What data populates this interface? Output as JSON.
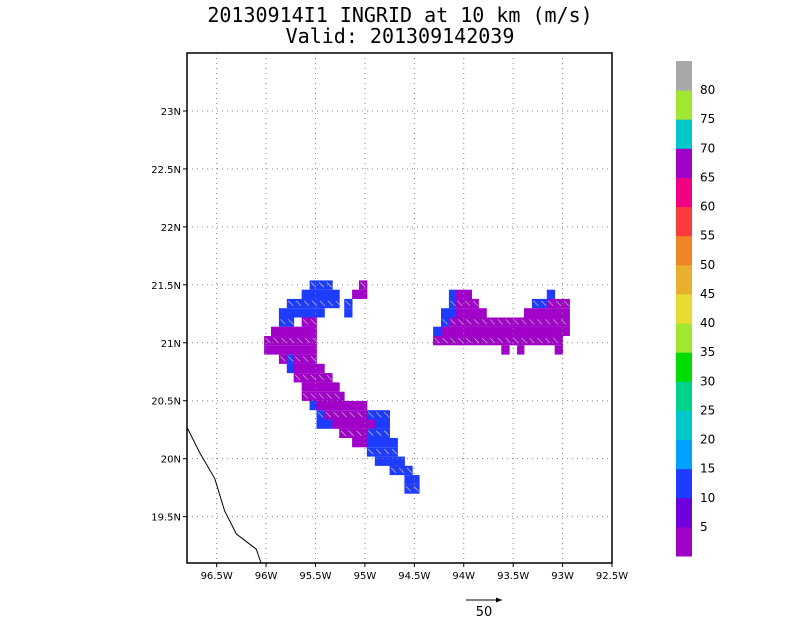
{
  "title": {
    "line1": "20130914I1 INGRID at 10 km (m/s)",
    "line2": "Valid: 201309142039"
  },
  "chart_data": {
    "type": "heatmap",
    "title": "20130914I1 INGRID at 10 km (m/s)",
    "subtitle": "Valid: 201309142039",
    "xlim": [
      -96.8,
      -92.5
    ],
    "ylim": [
      19.1,
      23.5
    ],
    "grid": true,
    "x_ticks": [
      {
        "v": -96.5,
        "label": "96.5W"
      },
      {
        "v": -96.0,
        "label": "96W"
      },
      {
        "v": -95.5,
        "label": "95.5W"
      },
      {
        "v": -95.0,
        "label": "95W"
      },
      {
        "v": -94.5,
        "label": "94.5W"
      },
      {
        "v": -94.0,
        "label": "94W"
      },
      {
        "v": -93.5,
        "label": "93.5W"
      },
      {
        "v": -93.0,
        "label": "93W"
      },
      {
        "v": -92.5,
        "label": "92.5W"
      }
    ],
    "y_ticks": [
      {
        "v": 19.5,
        "label": "19.5N"
      },
      {
        "v": 20.0,
        "label": "20N"
      },
      {
        "v": 20.5,
        "label": "20.5N"
      },
      {
        "v": 21.0,
        "label": "21N"
      },
      {
        "v": 21.5,
        "label": "21.5N"
      },
      {
        "v": 22.0,
        "label": "22N"
      },
      {
        "v": 22.5,
        "label": "22.5N"
      },
      {
        "v": 23.0,
        "label": "23N"
      }
    ],
    "colorbar": {
      "levels": [
        0,
        5,
        10,
        15,
        20,
        25,
        30,
        35,
        40,
        45,
        50,
        55,
        60,
        65,
        70,
        75,
        80,
        85
      ],
      "labels": [
        "5",
        "10",
        "15",
        "20",
        "25",
        "30",
        "35",
        "40",
        "45",
        "50",
        "55",
        "60",
        "65",
        "70",
        "75",
        "80"
      ],
      "colors": [
        "#a000c8",
        "#6e00dc",
        "#1e3cff",
        "#00a0ff",
        "#00c8c8",
        "#00d28c",
        "#00dc00",
        "#a0e632",
        "#e6dc32",
        "#e6af2d",
        "#f08228",
        "#fa3c3c",
        "#f00082",
        "#a000c8",
        "#00c8c8",
        "#a0e632",
        "#a8a8a8"
      ]
    },
    "coastline": [
      {
        "lon": -96.8,
        "lat": 20.27
      },
      {
        "lon": -96.67,
        "lat": 20.05
      },
      {
        "lon": -96.52,
        "lat": 19.83
      },
      {
        "lon": -96.42,
        "lat": 19.55
      },
      {
        "lon": -96.3,
        "lat": 19.35
      },
      {
        "lon": -96.1,
        "lat": 19.22
      },
      {
        "lon": -96.05,
        "lat": 19.1
      }
    ],
    "rows_cell_size_deg": 0.0766,
    "wind_rows": [
      {
        "lat": 21.5,
        "spans": [
          {
            "lon0": -95.56,
            "lon1": -95.33,
            "speed": 12
          },
          {
            "lon0": -95.06,
            "lon1": -94.98,
            "speed": 3
          }
        ]
      },
      {
        "lat": 21.42,
        "spans": [
          {
            "lon0": -95.64,
            "lon1": -95.26,
            "speed": 12
          },
          {
            "lon0": -95.13,
            "lon1": -94.98,
            "speed": 3
          },
          {
            "lon0": -94.15,
            "lon1": -94.08,
            "speed": 12
          },
          {
            "lon0": -94.08,
            "lon1": -93.92,
            "speed": 3
          },
          {
            "lon0": -93.16,
            "lon1": -93.08,
            "speed": 12
          }
        ]
      },
      {
        "lat": 21.34,
        "spans": [
          {
            "lon0": -95.79,
            "lon1": -95.26,
            "speed": 12
          },
          {
            "lon0": -95.21,
            "lon1": -95.13,
            "speed": 12
          },
          {
            "lon0": -94.15,
            "lon1": -94.08,
            "speed": 12
          },
          {
            "lon0": -94.08,
            "lon1": -93.85,
            "speed": 3
          },
          {
            "lon0": -93.31,
            "lon1": -93.16,
            "speed": 12
          },
          {
            "lon0": -93.16,
            "lon1": -93.0,
            "speed": 3
          },
          {
            "lon0": -93.0,
            "lon1": -92.93,
            "speed": 3
          }
        ]
      },
      {
        "lat": 21.26,
        "spans": [
          {
            "lon0": -95.87,
            "lon1": -95.41,
            "speed": 12
          },
          {
            "lon0": -95.21,
            "lon1": -95.13,
            "speed": 12
          },
          {
            "lon0": -94.23,
            "lon1": -94.08,
            "speed": 12
          },
          {
            "lon0": -94.08,
            "lon1": -93.77,
            "speed": 3
          },
          {
            "lon0": -93.39,
            "lon1": -92.93,
            "speed": 3
          }
        ]
      },
      {
        "lat": 21.18,
        "spans": [
          {
            "lon0": -95.87,
            "lon1": -95.72,
            "speed": 12
          },
          {
            "lon0": -95.64,
            "lon1": -95.49,
            "speed": 3
          },
          {
            "lon0": -94.23,
            "lon1": -94.15,
            "speed": 12
          },
          {
            "lon0": -94.15,
            "lon1": -92.93,
            "speed": 3
          }
        ]
      },
      {
        "lat": 21.1,
        "spans": [
          {
            "lon0": -95.95,
            "lon1": -95.49,
            "speed": 3
          },
          {
            "lon0": -94.31,
            "lon1": -94.23,
            "speed": 12
          },
          {
            "lon0": -94.23,
            "lon1": -92.93,
            "speed": 3
          }
        ]
      },
      {
        "lat": 21.02,
        "spans": [
          {
            "lon0": -96.02,
            "lon1": -95.49,
            "speed": 3
          },
          {
            "lon0": -94.31,
            "lon1": -93.0,
            "speed": 3
          }
        ]
      },
      {
        "lat": 20.94,
        "spans": [
          {
            "lon0": -96.02,
            "lon1": -95.49,
            "speed": 3
          },
          {
            "lon0": -93.62,
            "lon1": -93.54,
            "speed": 3
          },
          {
            "lon0": -93.46,
            "lon1": -93.39,
            "speed": 3
          },
          {
            "lon0": -93.08,
            "lon1": -93.0,
            "speed": 3
          }
        ]
      },
      {
        "lat": 20.86,
        "spans": [
          {
            "lon0": -95.87,
            "lon1": -95.79,
            "speed": 3
          },
          {
            "lon0": -95.79,
            "lon1": -95.72,
            "speed": 12
          },
          {
            "lon0": -95.72,
            "lon1": -95.49,
            "speed": 3
          }
        ]
      },
      {
        "lat": 20.78,
        "spans": [
          {
            "lon0": -95.79,
            "lon1": -95.72,
            "speed": 12
          },
          {
            "lon0": -95.72,
            "lon1": -95.41,
            "speed": 3
          }
        ]
      },
      {
        "lat": 20.7,
        "spans": [
          {
            "lon0": -95.72,
            "lon1": -95.33,
            "speed": 3
          }
        ]
      },
      {
        "lat": 20.62,
        "spans": [
          {
            "lon0": -95.64,
            "lon1": -95.26,
            "speed": 3
          }
        ]
      },
      {
        "lat": 20.54,
        "spans": [
          {
            "lon0": -95.64,
            "lon1": -95.21,
            "speed": 3
          }
        ]
      },
      {
        "lat": 20.46,
        "spans": [
          {
            "lon0": -95.56,
            "lon1": -95.49,
            "speed": 12
          },
          {
            "lon0": -95.49,
            "lon1": -95.06,
            "speed": 3
          },
          {
            "lon0": -95.06,
            "lon1": -94.98,
            "speed": 3
          }
        ]
      },
      {
        "lat": 20.38,
        "spans": [
          {
            "lon0": -95.49,
            "lon1": -95.41,
            "speed": 12
          },
          {
            "lon0": -95.41,
            "lon1": -94.98,
            "speed": 3
          },
          {
            "lon0": -94.98,
            "lon1": -94.75,
            "speed": 12
          }
        ]
      },
      {
        "lat": 20.3,
        "spans": [
          {
            "lon0": -95.49,
            "lon1": -95.33,
            "speed": 12
          },
          {
            "lon0": -95.33,
            "lon1": -94.9,
            "speed": 3
          },
          {
            "lon0": -94.9,
            "lon1": -94.75,
            "speed": 12
          }
        ]
      },
      {
        "lat": 20.22,
        "spans": [
          {
            "lon0": -95.26,
            "lon1": -94.98,
            "speed": 3
          },
          {
            "lon0": -94.98,
            "lon1": -94.75,
            "speed": 12
          }
        ]
      },
      {
        "lat": 20.14,
        "spans": [
          {
            "lon0": -95.13,
            "lon1": -94.98,
            "speed": 3
          },
          {
            "lon0": -94.98,
            "lon1": -94.67,
            "speed": 12
          }
        ]
      },
      {
        "lat": 20.06,
        "spans": [
          {
            "lon0": -94.98,
            "lon1": -94.67,
            "speed": 12
          }
        ]
      },
      {
        "lat": 19.98,
        "spans": [
          {
            "lon0": -94.9,
            "lon1": -94.6,
            "speed": 12
          }
        ]
      },
      {
        "lat": 19.9,
        "spans": [
          {
            "lon0": -94.75,
            "lon1": -94.52,
            "speed": 12
          }
        ]
      },
      {
        "lat": 19.82,
        "spans": [
          {
            "lon0": -94.6,
            "lon1": -94.45,
            "speed": 12
          }
        ]
      },
      {
        "lat": 19.74,
        "spans": [
          {
            "lon0": -94.6,
            "lon1": -94.45,
            "speed": 12
          }
        ]
      }
    ],
    "reference_vector": {
      "value": 50,
      "label": "50"
    }
  }
}
